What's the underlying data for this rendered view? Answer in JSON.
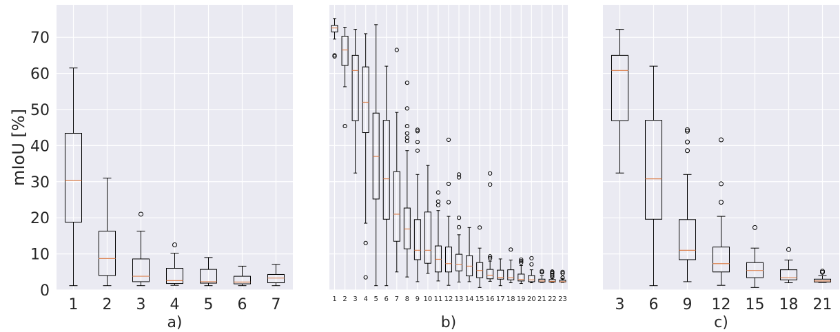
{
  "colors": {
    "panel_bg": "#eaeaf2",
    "grid": "#ffffff",
    "box_edge": "#000000",
    "median": "#dd8452",
    "text": "#262626"
  },
  "chart_data": [
    {
      "type": "box",
      "panel_label": "a)",
      "ylabel": "mIoU [%]",
      "ylim": [
        0,
        79
      ],
      "yticks": [
        0,
        10,
        20,
        30,
        40,
        50,
        60,
        70
      ],
      "categories": [
        "1",
        "2",
        "3",
        "4",
        "5",
        "6",
        "7"
      ],
      "boxes": [
        {
          "whisker_low": 1.2,
          "q1": 18.8,
          "median": 30.3,
          "q3": 43.4,
          "whisker_high": 61.5,
          "outliers": []
        },
        {
          "whisker_low": 1.2,
          "q1": 4.0,
          "median": 8.7,
          "q3": 16.3,
          "whisker_high": 31.0,
          "outliers": []
        },
        {
          "whisker_low": 1.2,
          "q1": 2.3,
          "median": 3.8,
          "q3": 8.6,
          "whisker_high": 16.3,
          "outliers": [
            21.0
          ]
        },
        {
          "whisker_low": 1.3,
          "q1": 1.8,
          "median": 2.6,
          "q3": 6.0,
          "whisker_high": 10.2,
          "outliers": [
            12.5
          ]
        },
        {
          "whisker_low": 1.2,
          "q1": 1.9,
          "median": 2.3,
          "q3": 5.7,
          "whisker_high": 9.0,
          "outliers": []
        },
        {
          "whisker_low": 1.2,
          "q1": 1.7,
          "median": 2.2,
          "q3": 3.8,
          "whisker_high": 6.6,
          "outliers": []
        },
        {
          "whisker_low": 1.2,
          "q1": 2.0,
          "median": 3.3,
          "q3": 4.3,
          "whisker_high": 7.1,
          "outliers": []
        }
      ]
    },
    {
      "type": "box",
      "panel_label": "b)",
      "ylim": [
        0,
        79
      ],
      "yticks": [
        0,
        10,
        20,
        30,
        40,
        50,
        60,
        70
      ],
      "categories": [
        "1",
        "2",
        "3",
        "4",
        "5",
        "6",
        "7",
        "8",
        "9",
        "10",
        "11",
        "12",
        "13",
        "14",
        "15",
        "16",
        "17",
        "18",
        "19",
        "20",
        "21",
        "22",
        "23"
      ],
      "boxes": [
        {
          "whisker_low": 69.5,
          "q1": 71.5,
          "median": 72.6,
          "q3": 73.3,
          "whisker_high": 75.2,
          "outliers": [
            64.7,
            65.0
          ]
        },
        {
          "whisker_low": 56.3,
          "q1": 62.2,
          "median": 66.5,
          "q3": 70.3,
          "whisker_high": 72.8,
          "outliers": [
            45.4
          ]
        },
        {
          "whisker_low": 32.4,
          "q1": 46.9,
          "median": 60.8,
          "q3": 65.0,
          "whisker_high": 72.2,
          "outliers": []
        },
        {
          "whisker_low": 18.5,
          "q1": 43.6,
          "median": 52.0,
          "q3": 61.8,
          "whisker_high": 71.0,
          "outliers": [
            13.0,
            3.5
          ]
        },
        {
          "whisker_low": 1.2,
          "q1": 25.2,
          "median": 37.0,
          "q3": 49.0,
          "whisker_high": 73.5,
          "outliers": []
        },
        {
          "whisker_low": 1.2,
          "q1": 19.6,
          "median": 30.8,
          "q3": 47.0,
          "whisker_high": 62.0,
          "outliers": []
        },
        {
          "whisker_low": 5.0,
          "q1": 13.5,
          "median": 21.0,
          "q3": 32.8,
          "whisker_high": 49.2,
          "outliers": [
            66.5
          ]
        },
        {
          "whisker_low": 3.6,
          "q1": 11.4,
          "median": 16.9,
          "q3": 22.7,
          "whisker_high": 38.6,
          "outliers": [
            41.3,
            42.2,
            43.4,
            45.4,
            50.3,
            57.4
          ]
        },
        {
          "whisker_low": 2.3,
          "q1": 8.4,
          "median": 11.0,
          "q3": 19.5,
          "whisker_high": 32.0,
          "outliers": [
            38.6,
            41.0,
            44.0,
            44.4
          ]
        },
        {
          "whisker_low": 4.6,
          "q1": 7.4,
          "median": 11.0,
          "q3": 21.6,
          "whisker_high": 34.5,
          "outliers": []
        },
        {
          "whisker_low": 2.5,
          "q1": 5.0,
          "median": 8.5,
          "q3": 12.2,
          "whisker_high": 22.0,
          "outliers": [
            23.5,
            24.5,
            27.0
          ]
        },
        {
          "whisker_low": 1.3,
          "q1": 5.0,
          "median": 7.3,
          "q3": 11.9,
          "whisker_high": 20.4,
          "outliers": [
            24.3,
            29.4,
            41.6
          ]
        },
        {
          "whisker_low": 2.2,
          "q1": 5.3,
          "median": 7.1,
          "q3": 9.9,
          "whisker_high": 15.3,
          "outliers": [
            17.4,
            20.0,
            31.2,
            32.0
          ]
        },
        {
          "whisker_low": 2.3,
          "q1": 3.9,
          "median": 6.6,
          "q3": 9.5,
          "whisker_high": 17.3,
          "outliers": []
        },
        {
          "whisker_low": 0.7,
          "q1": 3.4,
          "median": 5.4,
          "q3": 7.6,
          "whisker_high": 11.6,
          "outliers": [
            17.3
          ]
        },
        {
          "whisker_low": 2.4,
          "q1": 3.1,
          "median": 4.1,
          "q3": 5.7,
          "whisker_high": 8.0,
          "outliers": [
            8.8,
            9.3,
            29.2,
            32.3
          ]
        },
        {
          "whisker_low": 1.2,
          "q1": 3.0,
          "median": 3.5,
          "q3": 5.5,
          "whisker_high": 8.6,
          "outliers": []
        },
        {
          "whisker_low": 2.0,
          "q1": 2.8,
          "median": 3.4,
          "q3": 5.6,
          "whisker_high": 8.3,
          "outliers": [
            11.2
          ]
        },
        {
          "whisker_low": 1.8,
          "q1": 2.5,
          "median": 2.9,
          "q3": 4.4,
          "whisker_high": 6.8,
          "outliers": [
            7.6,
            8.0,
            8.4
          ]
        },
        {
          "whisker_low": 2.0,
          "q1": 2.3,
          "median": 2.8,
          "q3": 4.0,
          "whisker_high": 5.6,
          "outliers": [
            7.1,
            8.8
          ]
        },
        {
          "whisker_low": 2.1,
          "q1": 2.2,
          "median": 2.5,
          "q3": 3.0,
          "whisker_high": 4.0,
          "outliers": [
            4.9,
            5.2
          ]
        },
        {
          "whisker_low": 2.1,
          "q1": 2.2,
          "median": 2.4,
          "q3": 2.9,
          "whisker_high": 3.3,
          "outliers": [
            3.6,
            4.1,
            4.6,
            4.9,
            5.1
          ]
        },
        {
          "whisker_low": 2.1,
          "q1": 2.2,
          "median": 2.3,
          "q3": 2.7,
          "whisker_high": 3.2,
          "outliers": [
            3.4,
            4.6,
            5.0
          ]
        }
      ]
    },
    {
      "type": "box",
      "panel_label": "c)",
      "ylim": [
        0,
        79
      ],
      "yticks": [
        0,
        10,
        20,
        30,
        40,
        50,
        60,
        70
      ],
      "categories": [
        "3",
        "6",
        "9",
        "12",
        "15",
        "18",
        "21"
      ],
      "boxes": [
        {
          "whisker_low": 32.4,
          "q1": 46.9,
          "median": 60.8,
          "q3": 65.0,
          "whisker_high": 72.2,
          "outliers": []
        },
        {
          "whisker_low": 1.2,
          "q1": 19.6,
          "median": 30.8,
          "q3": 47.0,
          "whisker_high": 62.0,
          "outliers": []
        },
        {
          "whisker_low": 2.3,
          "q1": 8.4,
          "median": 11.0,
          "q3": 19.5,
          "whisker_high": 32.0,
          "outliers": [
            38.6,
            41.0,
            44.0,
            44.4
          ]
        },
        {
          "whisker_low": 1.3,
          "q1": 5.0,
          "median": 7.3,
          "q3": 11.9,
          "whisker_high": 20.4,
          "outliers": [
            24.3,
            29.4,
            41.6
          ]
        },
        {
          "whisker_low": 0.7,
          "q1": 3.4,
          "median": 5.4,
          "q3": 7.6,
          "whisker_high": 11.6,
          "outliers": [
            17.3
          ]
        },
        {
          "whisker_low": 2.0,
          "q1": 2.8,
          "median": 3.4,
          "q3": 5.6,
          "whisker_high": 8.3,
          "outliers": [
            11.2
          ]
        },
        {
          "whisker_low": 2.1,
          "q1": 2.2,
          "median": 2.5,
          "q3": 3.0,
          "whisker_high": 4.0,
          "outliers": [
            4.9,
            5.2
          ]
        }
      ]
    }
  ]
}
